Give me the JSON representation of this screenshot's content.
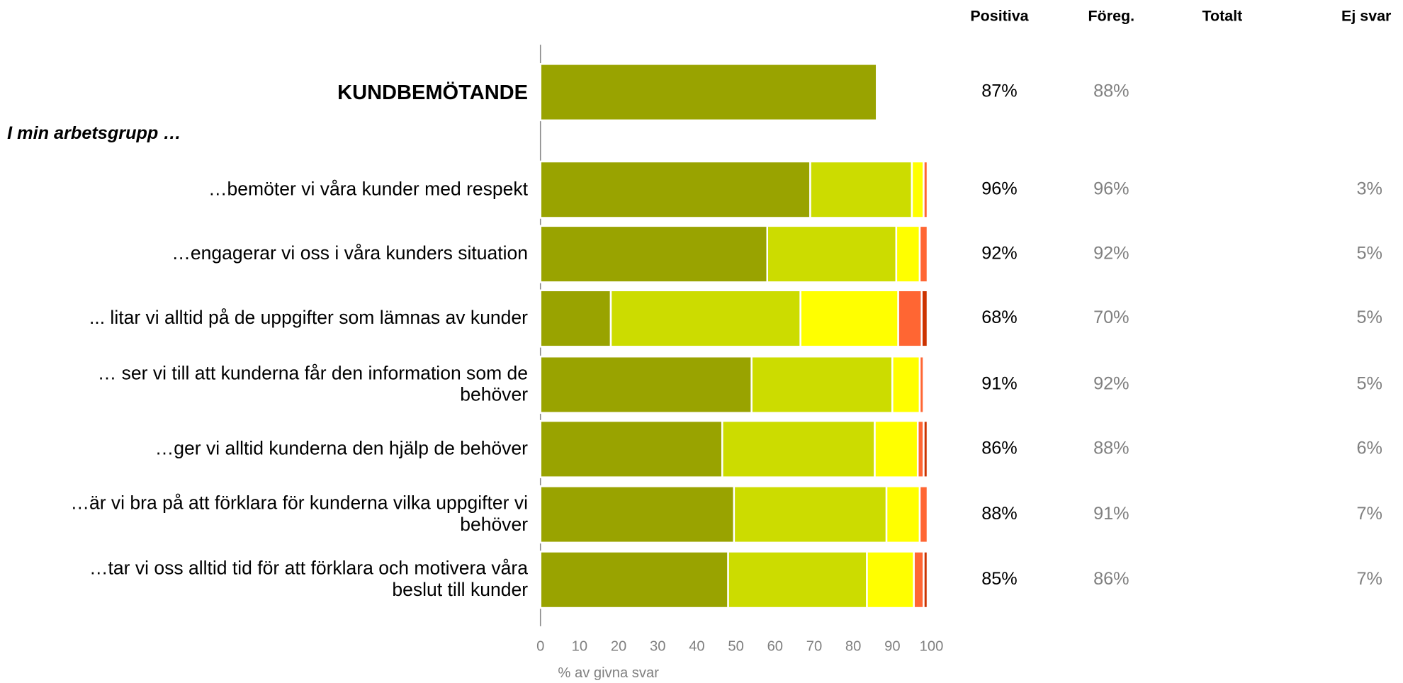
{
  "chart_data": {
    "type": "bar",
    "orientation": "horizontal",
    "stacked": true,
    "group_label": "I min arbetsgrupp …",
    "categories": [
      "KUNDBEMÖTANDE",
      "…bemöter vi våra kunder med respekt",
      "…engagerar vi oss i våra kunders situation",
      "... litar vi alltid på de uppgifter som lämnas av kunder",
      "… ser vi till att kunderna får den information som de behöver",
      "…ger vi alltid kunderna den hjälp de behöver",
      "…är vi bra på att förklara för kunderna vilka uppgifter vi behöver",
      "…tar vi oss alltid tid för att förklara och motivera våra beslut till kunder"
    ],
    "series": [
      {
        "color": "#99a300",
        "values": [
          86,
          69,
          58,
          18,
          54,
          46.5,
          49.5,
          48
        ]
      },
      {
        "color": "#ccdc00",
        "values": [
          null,
          26,
          33,
          48.5,
          36,
          39,
          39,
          35.5
        ]
      },
      {
        "color": "#ffff00",
        "values": [
          null,
          3,
          6,
          25,
          7,
          11,
          8.5,
          12
        ]
      },
      {
        "color": "#ff6633",
        "values": [
          null,
          1,
          2,
          6,
          1,
          1.5,
          2,
          2.5
        ]
      },
      {
        "color": "#cc3300",
        "values": [
          null,
          null,
          null,
          1.5,
          null,
          1,
          null,
          1
        ]
      }
    ],
    "xlabel": "% av givna svar",
    "xlim": [
      0,
      100
    ],
    "xticks": [
      0,
      10,
      20,
      30,
      40,
      50,
      60,
      70,
      80,
      90,
      100
    ],
    "table": [
      {
        "header": "Positiva",
        "values": [
          87,
          96,
          92,
          68,
          91,
          86,
          88,
          85
        ],
        "value_labels": [
          "87%",
          "96%",
          "92%",
          "68%",
          "91%",
          "86%",
          "88%",
          "85%"
        ]
      },
      {
        "header": "Föreg.",
        "values": [
          88,
          96,
          92,
          70,
          92,
          88,
          91,
          86
        ],
        "value_labels": [
          "88%",
          "96%",
          "92%",
          "70%",
          "92%",
          "88%",
          "91%",
          "86%"
        ]
      },
      {
        "header": "Totalt"
      },
      {
        "header": "Ej svar",
        "values": [
          null,
          3,
          5,
          5,
          5,
          6,
          7,
          7
        ],
        "value_labels": [
          null,
          "3%",
          "5%",
          "5%",
          "5%",
          "6%",
          "7%",
          "7%"
        ]
      }
    ]
  }
}
